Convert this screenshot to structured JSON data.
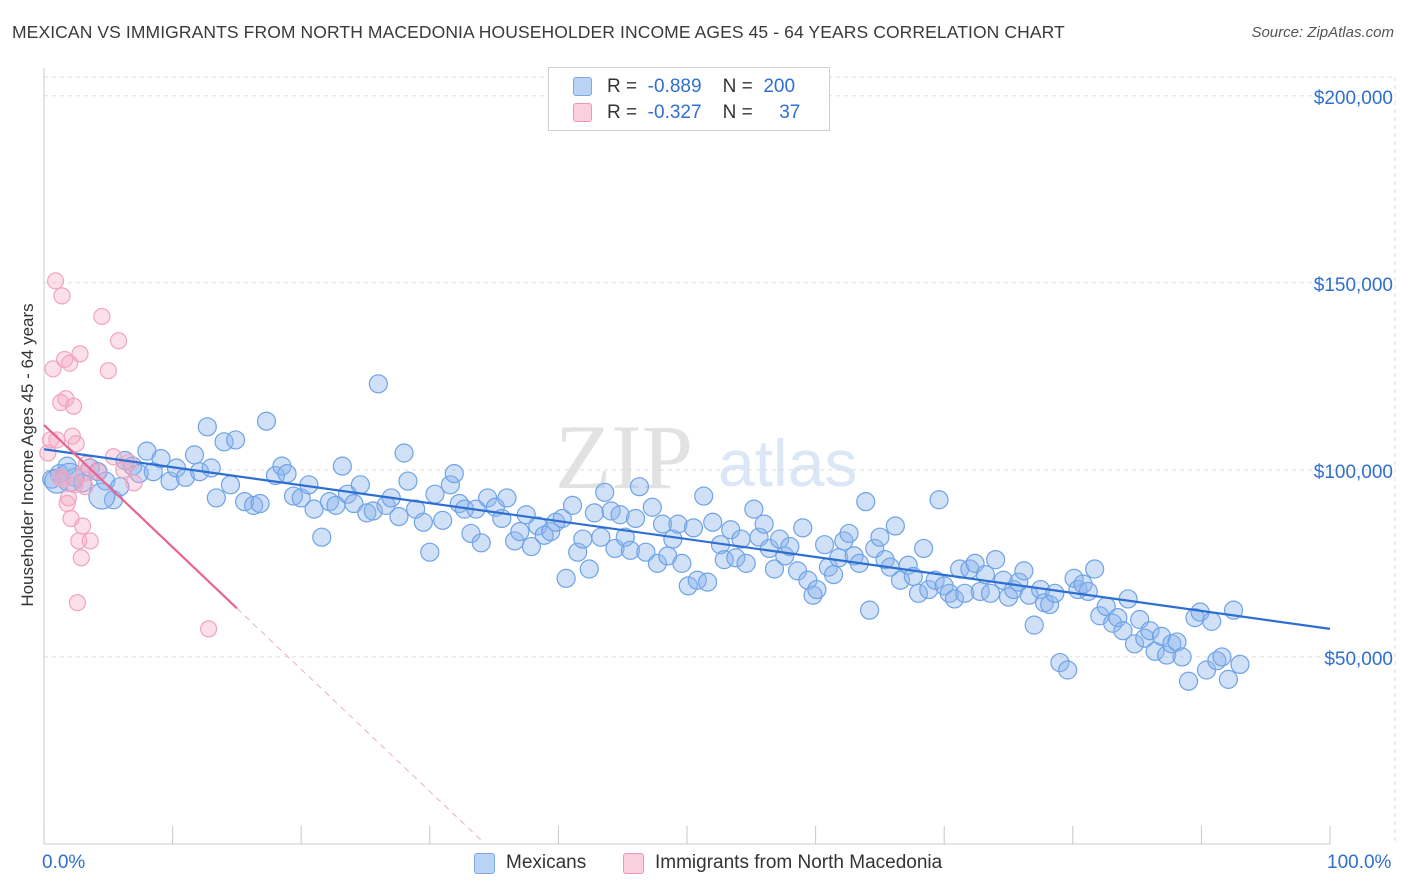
{
  "title": "MEXICAN VS IMMIGRANTS FROM NORTH MACEDONIA HOUSEHOLDER INCOME AGES 45 - 64 YEARS CORRELATION CHART",
  "source": "Source: ZipAtlas.com",
  "watermark": {
    "zip": "ZIP",
    "atlas": "atlas"
  },
  "legend": {
    "r_label": "R =",
    "n_label": "N =",
    "rows": [
      {
        "r": "-0.889",
        "n": "200",
        "color": "#a9c8f2"
      },
      {
        "r": "-0.327",
        "n": "37",
        "color": "#f7b7cb"
      }
    ]
  },
  "chart_data": {
    "type": "scatter",
    "title": "MEXICAN VS IMMIGRANTS FROM NORTH MACEDONIA HOUSEHOLDER INCOME AGES 45 - 64 YEARS CORRELATION CHART",
    "xlabel": "",
    "ylabel": "Householder Income Ages 45 - 64 years",
    "xlim": [
      0,
      100
    ],
    "ylim": [
      0,
      205000
    ],
    "x_tick_labels": [
      "0.0%",
      "100.0%"
    ],
    "y_ticks": [
      50000,
      100000,
      150000,
      200000
    ],
    "y_tick_labels": [
      "$50,000",
      "$100,000",
      "$150,000",
      "$200,000"
    ],
    "grid": true,
    "series": [
      {
        "name": "Mexicans",
        "color": "#6fa3e6",
        "line_color": "#2c6fd1",
        "trend": {
          "x0": 0,
          "y0": 105500,
          "x1": 100,
          "y1": 57500
        },
        "points": [
          [
            0.6,
            97500
          ],
          [
            1.2,
            99000
          ],
          [
            1.8,
            101000
          ],
          [
            2.4,
            98000
          ],
          [
            3.0,
            96500
          ],
          [
            3.6,
            100500
          ],
          [
            4.2,
            99500
          ],
          [
            4.8,
            97000
          ],
          [
            5.4,
            92000
          ],
          [
            5.9,
            95500
          ],
          [
            6.3,
            102500
          ],
          [
            6.9,
            101000
          ],
          [
            7.4,
            99000
          ],
          [
            8.0,
            105000
          ],
          [
            8.5,
            99500
          ],
          [
            9.1,
            103000
          ],
          [
            9.8,
            97000
          ],
          [
            10.3,
            100500
          ],
          [
            11.0,
            98000
          ],
          [
            11.7,
            104000
          ],
          [
            12.1,
            99500
          ],
          [
            12.7,
            111500
          ],
          [
            13.0,
            100500
          ],
          [
            13.4,
            92500
          ],
          [
            14.0,
            107500
          ],
          [
            14.5,
            96000
          ],
          [
            14.9,
            108000
          ],
          [
            15.6,
            91500
          ],
          [
            16.3,
            90500
          ],
          [
            16.8,
            91000
          ],
          [
            17.3,
            113000
          ],
          [
            18.0,
            98500
          ],
          [
            18.5,
            101000
          ],
          [
            18.9,
            99000
          ],
          [
            19.4,
            93000
          ],
          [
            20.0,
            92500
          ],
          [
            20.6,
            96000
          ],
          [
            21.0,
            89500
          ],
          [
            21.6,
            82000
          ],
          [
            22.2,
            91500
          ],
          [
            22.7,
            90500
          ],
          [
            23.2,
            101000
          ],
          [
            23.6,
            93500
          ],
          [
            24.1,
            91000
          ],
          [
            24.6,
            96000
          ],
          [
            25.1,
            88500
          ],
          [
            25.6,
            89000
          ],
          [
            26.0,
            123000
          ],
          [
            26.6,
            90500
          ],
          [
            27.0,
            92500
          ],
          [
            27.6,
            87500
          ],
          [
            28.0,
            104500
          ],
          [
            28.3,
            97000
          ],
          [
            28.9,
            89500
          ],
          [
            29.5,
            86000
          ],
          [
            30.0,
            78000
          ],
          [
            30.4,
            93500
          ],
          [
            31.0,
            86500
          ],
          [
            31.6,
            96000
          ],
          [
            31.9,
            99000
          ],
          [
            32.3,
            91000
          ],
          [
            32.7,
            89500
          ],
          [
            33.2,
            83000
          ],
          [
            33.6,
            89500
          ],
          [
            34.0,
            80500
          ],
          [
            34.5,
            92500
          ],
          [
            35.1,
            90000
          ],
          [
            35.6,
            87000
          ],
          [
            36.0,
            92500
          ],
          [
            36.6,
            81000
          ],
          [
            37.0,
            83500
          ],
          [
            37.5,
            88000
          ],
          [
            37.9,
            79500
          ],
          [
            38.4,
            85000
          ],
          [
            38.9,
            82500
          ],
          [
            39.4,
            83500
          ],
          [
            39.8,
            86000
          ],
          [
            40.3,
            87000
          ],
          [
            40.6,
            71000
          ],
          [
            41.1,
            90500
          ],
          [
            41.5,
            78000
          ],
          [
            41.9,
            81500
          ],
          [
            42.4,
            73500
          ],
          [
            42.8,
            88500
          ],
          [
            43.3,
            82000
          ],
          [
            43.6,
            94000
          ],
          [
            44.1,
            89000
          ],
          [
            44.4,
            79000
          ],
          [
            44.8,
            88000
          ],
          [
            45.2,
            82000
          ],
          [
            45.6,
            78500
          ],
          [
            46.0,
            87000
          ],
          [
            46.3,
            95500
          ],
          [
            46.8,
            78000
          ],
          [
            47.3,
            90000
          ],
          [
            47.7,
            75000
          ],
          [
            48.1,
            85500
          ],
          [
            48.5,
            77000
          ],
          [
            48.9,
            81500
          ],
          [
            49.3,
            85500
          ],
          [
            49.6,
            75000
          ],
          [
            50.1,
            69000
          ],
          [
            50.5,
            84500
          ],
          [
            50.8,
            70500
          ],
          [
            51.3,
            93000
          ],
          [
            51.6,
            70000
          ],
          [
            52.0,
            86000
          ],
          [
            52.6,
            80000
          ],
          [
            52.9,
            76000
          ],
          [
            53.4,
            84000
          ],
          [
            53.8,
            76500
          ],
          [
            54.2,
            81500
          ],
          [
            54.6,
            75000
          ],
          [
            55.2,
            89500
          ],
          [
            55.6,
            82000
          ],
          [
            56.0,
            85500
          ],
          [
            56.4,
            79000
          ],
          [
            56.8,
            73500
          ],
          [
            57.2,
            81500
          ],
          [
            57.6,
            77000
          ],
          [
            58.0,
            79500
          ],
          [
            58.6,
            73000
          ],
          [
            59.0,
            84500
          ],
          [
            59.4,
            70500
          ],
          [
            59.8,
            66500
          ],
          [
            60.1,
            68000
          ],
          [
            60.7,
            80000
          ],
          [
            61.0,
            74000
          ],
          [
            61.4,
            72000
          ],
          [
            61.8,
            76500
          ],
          [
            62.2,
            81000
          ],
          [
            62.6,
            83000
          ],
          [
            63.0,
            77000
          ],
          [
            63.4,
            75000
          ],
          [
            63.9,
            91500
          ],
          [
            64.2,
            62500
          ],
          [
            64.6,
            79000
          ],
          [
            65.0,
            82000
          ],
          [
            65.4,
            76000
          ],
          [
            65.8,
            74000
          ],
          [
            66.2,
            85000
          ],
          [
            66.6,
            70500
          ],
          [
            67.2,
            74500
          ],
          [
            67.6,
            71500
          ],
          [
            68.0,
            67000
          ],
          [
            68.4,
            79000
          ],
          [
            68.8,
            68000
          ],
          [
            69.3,
            70500
          ],
          [
            69.6,
            92000
          ],
          [
            70.0,
            69000
          ],
          [
            70.4,
            67000
          ],
          [
            70.8,
            65500
          ],
          [
            71.2,
            73500
          ],
          [
            71.6,
            67000
          ],
          [
            72.0,
            73500
          ],
          [
            72.4,
            75000
          ],
          [
            72.8,
            67500
          ],
          [
            73.2,
            72000
          ],
          [
            73.6,
            67000
          ],
          [
            74.0,
            76000
          ],
          [
            74.6,
            70500
          ],
          [
            75.0,
            66000
          ],
          [
            75.4,
            68000
          ],
          [
            75.8,
            70000
          ],
          [
            76.2,
            73000
          ],
          [
            76.6,
            66500
          ],
          [
            77.0,
            58500
          ],
          [
            77.5,
            68000
          ],
          [
            77.8,
            64500
          ],
          [
            78.2,
            64000
          ],
          [
            78.6,
            67000
          ],
          [
            79.0,
            48500
          ],
          [
            79.6,
            46500
          ],
          [
            80.1,
            71000
          ],
          [
            80.4,
            68000
          ],
          [
            80.8,
            69500
          ],
          [
            81.2,
            67500
          ],
          [
            81.7,
            73500
          ],
          [
            82.1,
            61000
          ],
          [
            82.6,
            63500
          ],
          [
            83.1,
            59000
          ],
          [
            83.5,
            60500
          ],
          [
            83.9,
            57000
          ],
          [
            84.3,
            65500
          ],
          [
            84.8,
            53500
          ],
          [
            85.2,
            60000
          ],
          [
            85.6,
            55000
          ],
          [
            86.0,
            57000
          ],
          [
            86.4,
            51500
          ],
          [
            86.9,
            55500
          ],
          [
            87.3,
            50500
          ],
          [
            87.7,
            53500
          ],
          [
            88.1,
            54000
          ],
          [
            88.5,
            50000
          ],
          [
            89.0,
            43500
          ],
          [
            89.5,
            60500
          ],
          [
            89.9,
            62000
          ],
          [
            90.4,
            46500
          ],
          [
            90.8,
            59500
          ],
          [
            91.2,
            49000
          ],
          [
            91.6,
            50000
          ],
          [
            92.1,
            44000
          ],
          [
            92.5,
            62500
          ],
          [
            93.0,
            48000
          ]
        ]
      },
      {
        "name": "Immigrants from North Macedonia",
        "color": "#f2a3bf",
        "line_color": "#e8648f",
        "trend": {
          "x0": 0,
          "y0": 112000,
          "x1": 15,
          "y1": 63000
        },
        "trend_dashed": {
          "x0": 15,
          "y0": 63000,
          "x1": 34,
          "y1": 1000
        },
        "points": [
          [
            0.3,
            104500
          ],
          [
            0.5,
            108000
          ],
          [
            0.7,
            127000
          ],
          [
            0.9,
            150500
          ],
          [
            1.0,
            108000
          ],
          [
            1.2,
            98000
          ],
          [
            1.3,
            118000
          ],
          [
            1.4,
            146500
          ],
          [
            1.5,
            97500
          ],
          [
            1.6,
            129500
          ],
          [
            1.7,
            119000
          ],
          [
            1.8,
            91000
          ],
          [
            1.9,
            92500
          ],
          [
            2.0,
            128500
          ],
          [
            2.1,
            87000
          ],
          [
            2.2,
            109000
          ],
          [
            2.3,
            117000
          ],
          [
            2.4,
            96000
          ],
          [
            2.5,
            107000
          ],
          [
            2.6,
            64500
          ],
          [
            2.7,
            81000
          ],
          [
            2.8,
            131000
          ],
          [
            2.9,
            76500
          ],
          [
            3.0,
            85000
          ],
          [
            3.1,
            99000
          ],
          [
            3.2,
            95500
          ],
          [
            3.3,
            101500
          ],
          [
            3.6,
            81000
          ],
          [
            4.2,
            99500
          ],
          [
            4.5,
            141000
          ],
          [
            5.0,
            126500
          ],
          [
            5.4,
            103500
          ],
          [
            5.8,
            134500
          ],
          [
            6.2,
            100000
          ],
          [
            6.6,
            102000
          ],
          [
            7.0,
            96500
          ],
          [
            12.8,
            57500
          ]
        ]
      }
    ]
  }
}
